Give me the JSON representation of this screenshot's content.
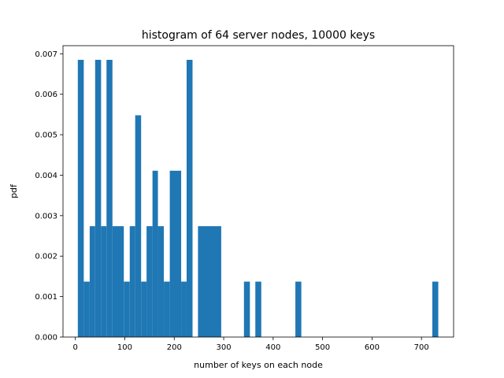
{
  "chart_data": {
    "type": "bar",
    "title": "histogram of 64 server nodes, 10000 keys",
    "xlabel": "number of keys on each node",
    "ylabel": "pdf",
    "xlim": [
      -25,
      765
    ],
    "ylim": [
      0,
      0.0072
    ],
    "xticks": [
      0,
      100,
      200,
      300,
      400,
      500,
      600,
      700
    ],
    "yticks": [
      0.0,
      0.001,
      0.002,
      0.003,
      0.004,
      0.005,
      0.006,
      0.007
    ],
    "ytick_labels": [
      "0.000",
      "0.001",
      "0.002",
      "0.003",
      "0.004",
      "0.005",
      "0.006",
      "0.007"
    ],
    "bar_color": "#1f77b4",
    "grid": false,
    "bins": [
      {
        "x0": 5,
        "x1": 17,
        "value": 0.00685
      },
      {
        "x0": 17,
        "x1": 29,
        "value": 0.00137
      },
      {
        "x0": 29,
        "x1": 40,
        "value": 0.00274
      },
      {
        "x0": 40,
        "x1": 52,
        "value": 0.00685
      },
      {
        "x0": 52,
        "x1": 63,
        "value": 0.00274
      },
      {
        "x0": 63,
        "x1": 75,
        "value": 0.00685
      },
      {
        "x0": 75,
        "x1": 98,
        "value": 0.00274
      },
      {
        "x0": 98,
        "x1": 110,
        "value": 0.00137
      },
      {
        "x0": 110,
        "x1": 121,
        "value": 0.00274
      },
      {
        "x0": 121,
        "x1": 133,
        "value": 0.00548
      },
      {
        "x0": 133,
        "x1": 144,
        "value": 0.00137
      },
      {
        "x0": 144,
        "x1": 156,
        "value": 0.00274
      },
      {
        "x0": 156,
        "x1": 167,
        "value": 0.00411
      },
      {
        "x0": 167,
        "x1": 179,
        "value": 0.00274
      },
      {
        "x0": 179,
        "x1": 191,
        "value": 0.00137
      },
      {
        "x0": 191,
        "x1": 214,
        "value": 0.00411
      },
      {
        "x0": 214,
        "x1": 225,
        "value": 0.00137
      },
      {
        "x0": 225,
        "x1": 237,
        "value": 0.00685
      },
      {
        "x0": 248,
        "x1": 295,
        "value": 0.00274
      },
      {
        "x0": 341,
        "x1": 353,
        "value": 0.00137
      },
      {
        "x0": 364,
        "x1": 376,
        "value": 0.00137
      },
      {
        "x0": 445,
        "x1": 457,
        "value": 0.00137
      },
      {
        "x0": 722,
        "x1": 734,
        "value": 0.00137
      }
    ]
  }
}
